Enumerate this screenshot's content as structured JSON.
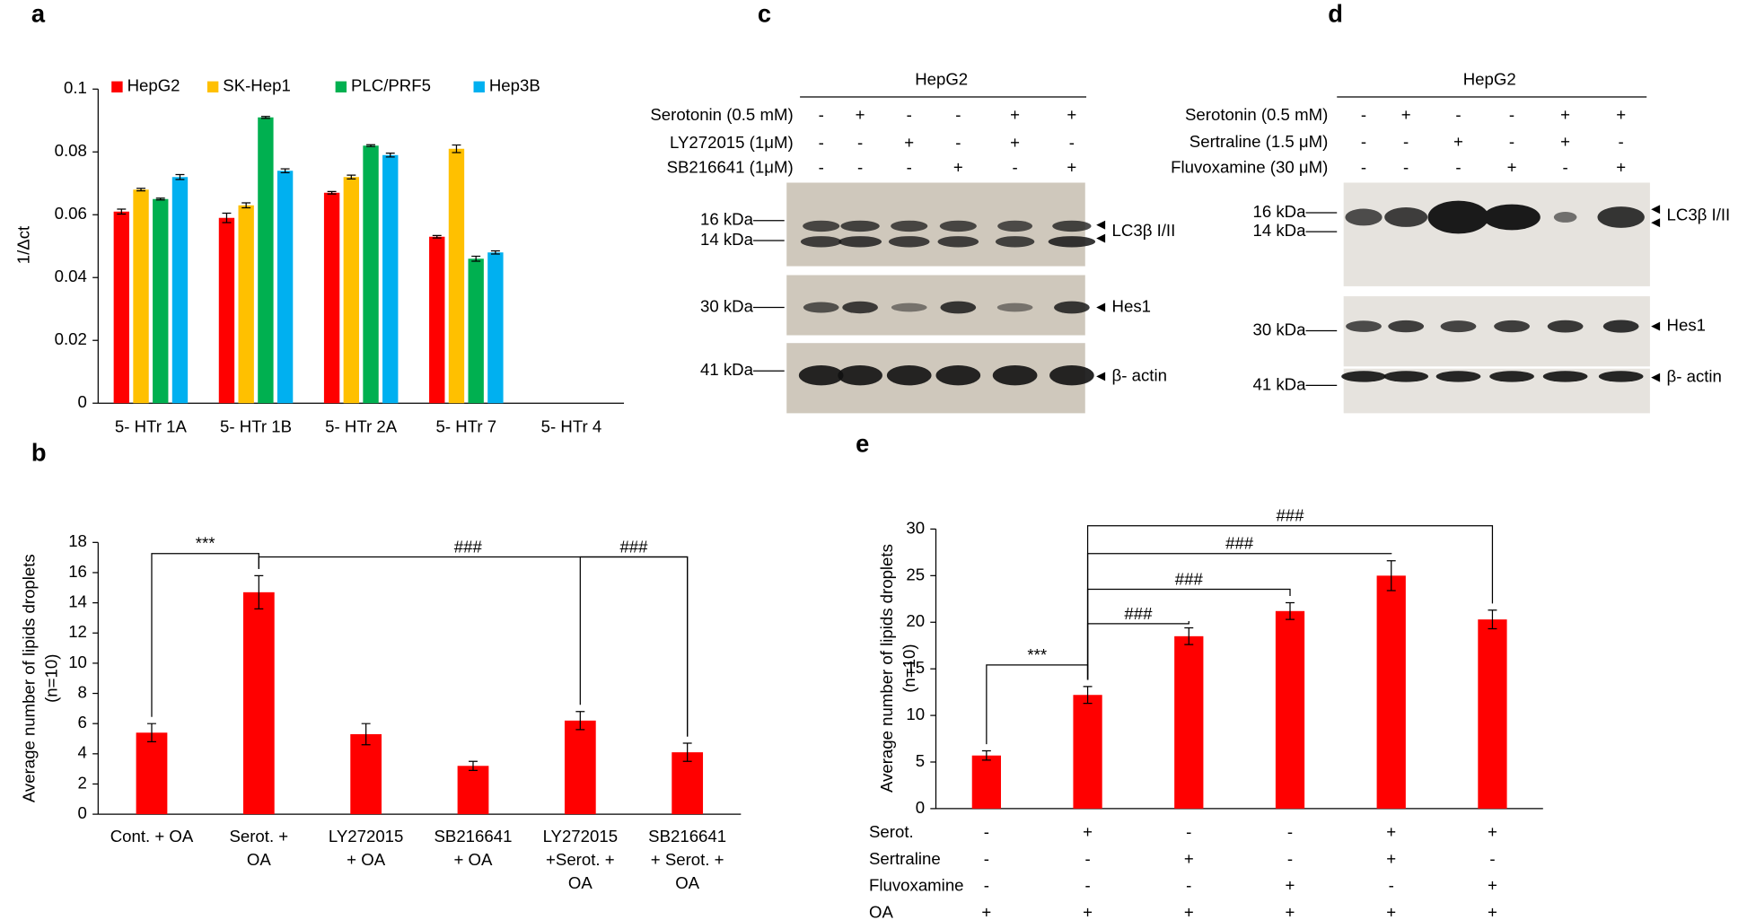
{
  "chart_data": [
    {
      "type": "bar",
      "panel_label": "a",
      "ylabel": "1/Δct",
      "categories": [
        "5- HTr 1A",
        "5- HTr 1B",
        "5- HTr 2A",
        "5- HTr 7",
        "5- HTr 4"
      ],
      "series": [
        {
          "name": "HepG2",
          "color": "#ff0000",
          "values": [
            0.061,
            0.059,
            0.067,
            0.053,
            null
          ],
          "errors": [
            0.0008,
            0.0015,
            0.0004,
            0.0004,
            null
          ]
        },
        {
          "name": "SK-Hep1",
          "color": "#ffc000",
          "values": [
            0.068,
            0.063,
            0.072,
            0.081,
            null
          ],
          "errors": [
            0.0004,
            0.0008,
            0.0006,
            0.0012,
            null
          ]
        },
        {
          "name": "PLC/PRF5",
          "color": "#00b050",
          "values": [
            0.065,
            0.091,
            0.082,
            0.046,
            null
          ],
          "errors": [
            0.0003,
            0.0003,
            0.0003,
            0.0008,
            null
          ]
        },
        {
          "name": "Hep3B",
          "color": "#00b0f0",
          "values": [
            0.072,
            0.074,
            0.079,
            0.048,
            null
          ],
          "errors": [
            0.0008,
            0.0006,
            0.0006,
            0.0005,
            null
          ]
        }
      ],
      "ylim": [
        0,
        0.1
      ],
      "yticks": [
        0,
        0.02,
        0.04,
        0.06,
        0.08,
        0.1
      ],
      "grid": false
    },
    {
      "type": "bar",
      "panel_label": "b",
      "ylabel": [
        "Average number of lipids droplets",
        "(n=10)"
      ],
      "categories": [
        [
          "Cont. + OA"
        ],
        [
          "Serot. +",
          "OA"
        ],
        [
          "LY272015",
          "+ OA"
        ],
        [
          "SB216641",
          "+ OA"
        ],
        [
          "LY272015",
          "+Serot. +",
          "OA"
        ],
        [
          "SB216641",
          "+ Serot. +",
          "OA"
        ]
      ],
      "values": [
        5.4,
        14.7,
        5.3,
        3.2,
        6.2,
        4.1
      ],
      "errors": [
        0.6,
        1.1,
        0.7,
        0.3,
        0.6,
        0.6
      ],
      "color": "#ff0000",
      "ylim": [
        0,
        18
      ],
      "yticks": [
        0,
        2,
        4,
        6,
        8,
        10,
        12,
        14,
        16,
        18
      ],
      "grid": false,
      "annotations": [
        "***",
        "###",
        "###"
      ]
    },
    {
      "type": "bar",
      "panel_label": "e",
      "ylabel": [
        "Average  number of lipids droplets",
        "(n=10)"
      ],
      "treatments": [
        {
          "label": "Serot.",
          "signs": [
            "-",
            "+",
            "-",
            "-",
            "+",
            "+"
          ]
        },
        {
          "label": "Sertraline",
          "signs": [
            "-",
            "-",
            "+",
            "-",
            "+",
            "-"
          ]
        },
        {
          "label": "Fluvoxamine",
          "signs": [
            "-",
            "-",
            "-",
            "+",
            "-",
            "+"
          ]
        },
        {
          "label": "OA",
          "signs": [
            "+",
            "+",
            "+",
            "+",
            "+",
            "+"
          ]
        }
      ],
      "values": [
        5.7,
        12.2,
        18.5,
        21.2,
        25,
        20.3
      ],
      "errors": [
        0.5,
        0.9,
        0.9,
        0.9,
        1.6,
        1.0
      ],
      "color": "#ff0000",
      "ylim": [
        0,
        30
      ],
      "yticks": [
        0,
        5,
        10,
        15,
        20,
        25,
        30
      ],
      "grid": false,
      "annotations": [
        "***",
        "###",
        "###",
        "###",
        "###"
      ]
    }
  ],
  "blots": [
    {
      "panel_label": "c",
      "header": "HepG2",
      "treatments": [
        {
          "label": "Serotonin (0.5 mM)",
          "signs": [
            "-",
            "+",
            "-",
            "-",
            "+",
            "+"
          ]
        },
        {
          "label": "LY272015  (1μM)",
          "signs": [
            "-",
            "-",
            "+",
            "-",
            "+",
            "-"
          ]
        },
        {
          "label": "SB216641 (1μM)",
          "signs": [
            "-",
            "-",
            "-",
            "+",
            "-",
            "+"
          ]
        }
      ],
      "markers": [
        "16 kDa",
        "14 kDa",
        "30 kDa",
        "41 kDa"
      ],
      "bands": [
        "LC3β I/II",
        "Hes1",
        "β- actin"
      ]
    },
    {
      "panel_label": "d",
      "header": "HepG2",
      "treatments": [
        {
          "label": "Serotonin (0.5 mM)",
          "signs": [
            "-",
            "+",
            "-",
            "-",
            "+",
            "+"
          ]
        },
        {
          "label": "Sertraline (1.5 μM)",
          "signs": [
            "-",
            "-",
            "+",
            "-",
            "+",
            "-"
          ]
        },
        {
          "label": "Fluvoxamine (30 μM)",
          "signs": [
            "-",
            "-",
            "-",
            "+",
            "-",
            "+"
          ]
        }
      ],
      "markers": [
        "16 kDa",
        "14 kDa",
        "30 kDa",
        "41 kDa"
      ],
      "bands": [
        "LC3β I/II",
        "Hes1",
        "β- actin"
      ]
    }
  ]
}
